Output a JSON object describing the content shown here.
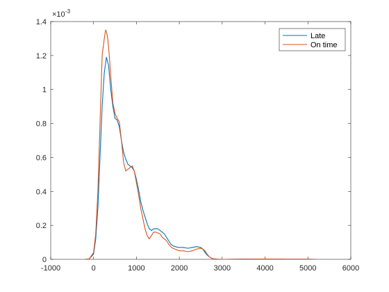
{
  "chart_data": {
    "type": "line",
    "title": "",
    "xlabel": "",
    "ylabel": "",
    "xlim": [
      -1000,
      6000
    ],
    "ylim": [
      0,
      0.0014
    ],
    "x_ticks": [
      -1000,
      0,
      1000,
      2000,
      3000,
      4000,
      5000,
      6000
    ],
    "x_tick_labels": [
      "-1000",
      "0",
      "1000",
      "2000",
      "3000",
      "4000",
      "5000",
      "6000"
    ],
    "y_ticks": [
      0,
      0.0002,
      0.0004,
      0.0006,
      0.0008,
      0.001,
      0.0012,
      0.0014
    ],
    "y_tick_labels": [
      "0",
      "0.2",
      "0.4",
      "0.6",
      "0.8",
      "1",
      "1.2",
      "1.4"
    ],
    "y_exponent_base": "×10",
    "y_exponent_power": "-3",
    "grid": false,
    "legend_location": "top-right",
    "series": [
      {
        "name": "Late",
        "color": "#0072BD",
        "x": [
          -200,
          -100,
          0,
          50,
          100,
          150,
          200,
          250,
          300,
          350,
          400,
          450,
          500,
          550,
          600,
          650,
          700,
          750,
          800,
          850,
          900,
          950,
          1000,
          1050,
          1100,
          1150,
          1200,
          1250,
          1300,
          1350,
          1400,
          1450,
          1500,
          1550,
          1600,
          1650,
          1700,
          1750,
          1800,
          1850,
          1900,
          1950,
          2000,
          2100,
          2200,
          2300,
          2400,
          2500,
          2550,
          2600,
          2650,
          2700,
          2750,
          2800,
          2900,
          3000,
          3500,
          4000,
          4500,
          5000,
          5200
        ],
        "y": [
          0,
          3e-06,
          3e-05,
          0.00012,
          0.0003,
          0.0006,
          0.0009,
          0.0011,
          0.00119,
          0.00114,
          0.001,
          0.0009,
          0.00083,
          0.00082,
          0.00078,
          0.0007,
          0.00063,
          0.00059,
          0.00056,
          0.00055,
          0.00054,
          0.00052,
          0.00047,
          0.00041,
          0.00034,
          0.00029,
          0.00025,
          0.00021,
          0.00018,
          0.00017,
          0.00018,
          0.00018,
          0.00018,
          0.00017,
          0.00016,
          0.00015,
          0.00013,
          0.00011,
          9e-05,
          8e-05,
          7.5e-05,
          7.2e-05,
          7e-05,
          7e-05,
          6.5e-05,
          7e-05,
          7.5e-05,
          7e-05,
          6e-05,
          4e-05,
          2.5e-05,
          1.5e-05,
          7e-06,
          3e-06,
          1e-06,
          0,
          2e-06,
          2e-06,
          1e-06,
          1e-06,
          0
        ]
      },
      {
        "name": "On time",
        "color": "#D95319",
        "x": [
          -200,
          -100,
          0,
          50,
          100,
          150,
          200,
          250,
          280,
          300,
          330,
          360,
          400,
          450,
          500,
          550,
          600,
          650,
          700,
          750,
          800,
          850,
          900,
          950,
          1000,
          1050,
          1100,
          1150,
          1200,
          1250,
          1300,
          1350,
          1400,
          1450,
          1500,
          1550,
          1600,
          1650,
          1700,
          1750,
          1800,
          1850,
          1900,
          1950,
          2000,
          2100,
          2200,
          2300,
          2400,
          2500,
          2550,
          2600,
          2650,
          2700,
          2750,
          2800,
          2900,
          3000,
          3500,
          4000,
          4500,
          5000,
          5200
        ],
        "y": [
          0,
          3e-06,
          4e-05,
          0.00015,
          0.0004,
          0.0008,
          0.0012,
          0.0013,
          0.00135,
          0.00134,
          0.0013,
          0.00122,
          0.00108,
          0.00092,
          0.00086,
          0.00083,
          0.00081,
          0.0007,
          0.00057,
          0.00052,
          0.00053,
          0.00054,
          0.00055,
          0.00052,
          0.00045,
          0.00038,
          0.0003,
          0.00024,
          0.00018,
          0.00014,
          0.00012,
          0.00014,
          0.00016,
          0.00016,
          0.000155,
          0.00015,
          0.00013,
          0.00012,
          0.00011,
          9e-05,
          7.5e-05,
          6.5e-05,
          6e-05,
          5.5e-05,
          5e-05,
          5e-05,
          4.5e-05,
          5e-05,
          6e-05,
          6.5e-05,
          6e-05,
          5e-05,
          3e-05,
          1.5e-05,
          7e-06,
          3e-06,
          1e-06,
          0,
          1e-06,
          2e-06,
          1e-06,
          1e-06,
          0
        ]
      }
    ]
  }
}
